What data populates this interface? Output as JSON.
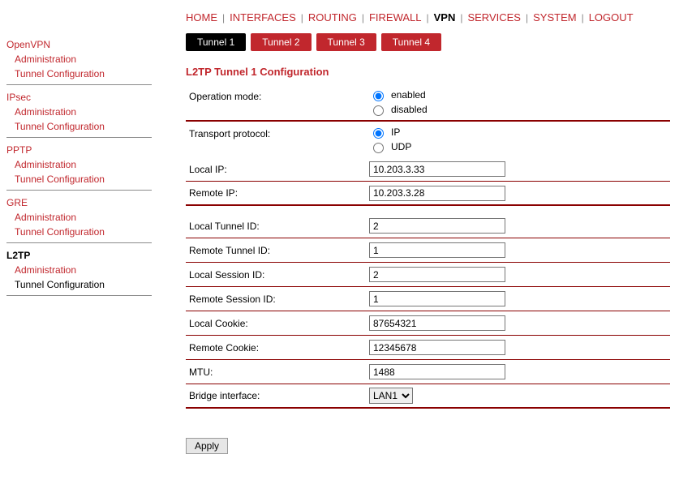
{
  "topnav": {
    "items": [
      {
        "label": "HOME",
        "active": false
      },
      {
        "label": "INTERFACES",
        "active": false
      },
      {
        "label": "ROUTING",
        "active": false
      },
      {
        "label": "FIREWALL",
        "active": false
      },
      {
        "label": "VPN",
        "active": true
      },
      {
        "label": "SERVICES",
        "active": false
      },
      {
        "label": "SYSTEM",
        "active": false
      },
      {
        "label": "LOGOUT",
        "active": false
      }
    ]
  },
  "sidebar": {
    "groups": [
      {
        "title": "OpenVPN",
        "active": false,
        "subs": [
          {
            "label": "Administration",
            "active": false
          },
          {
            "label": "Tunnel Configuration",
            "active": false
          }
        ]
      },
      {
        "title": "IPsec",
        "active": false,
        "subs": [
          {
            "label": "Administration",
            "active": false
          },
          {
            "label": "Tunnel Configuration",
            "active": false
          }
        ]
      },
      {
        "title": "PPTP",
        "active": false,
        "subs": [
          {
            "label": "Administration",
            "active": false
          },
          {
            "label": "Tunnel Configuration",
            "active": false
          }
        ]
      },
      {
        "title": "GRE",
        "active": false,
        "subs": [
          {
            "label": "Administration",
            "active": false
          },
          {
            "label": "Tunnel Configuration",
            "active": false
          }
        ]
      },
      {
        "title": "L2TP",
        "active": true,
        "subs": [
          {
            "label": "Administration",
            "active": false
          },
          {
            "label": "Tunnel Configuration",
            "active": true
          }
        ]
      }
    ]
  },
  "tabs": {
    "items": [
      {
        "label": "Tunnel 1",
        "active": true
      },
      {
        "label": "Tunnel 2",
        "active": false
      },
      {
        "label": "Tunnel 3",
        "active": false
      },
      {
        "label": "Tunnel 4",
        "active": false
      }
    ]
  },
  "section_title": "L2TP Tunnel 1 Configuration",
  "form": {
    "operation_mode": {
      "label": "Operation mode:",
      "opt_enabled": "enabled",
      "opt_disabled": "disabled",
      "value": "enabled"
    },
    "transport_protocol": {
      "label": "Transport protocol:",
      "opt_ip": "IP",
      "opt_udp": "UDP",
      "value": "IP"
    },
    "local_ip": {
      "label": "Local IP:",
      "value": "10.203.3.33"
    },
    "remote_ip": {
      "label": "Remote IP:",
      "value": "10.203.3.28"
    },
    "local_tunnel_id": {
      "label": "Local Tunnel ID:",
      "value": "2"
    },
    "remote_tunnel_id": {
      "label": "Remote Tunnel ID:",
      "value": "1"
    },
    "local_session_id": {
      "label": "Local Session ID:",
      "value": "2"
    },
    "remote_session_id": {
      "label": "Remote Session ID:",
      "value": "1"
    },
    "local_cookie": {
      "label": "Local Cookie:",
      "value": "87654321"
    },
    "remote_cookie": {
      "label": "Remote Cookie:",
      "value": "12345678"
    },
    "mtu": {
      "label": "MTU:",
      "value": "1488"
    },
    "bridge_interface": {
      "label": "Bridge interface:",
      "value": "LAN1"
    },
    "apply": "Apply"
  },
  "colors": {
    "accent": "#c1272d",
    "tab_active": "#000000",
    "border": "#8a0000"
  }
}
